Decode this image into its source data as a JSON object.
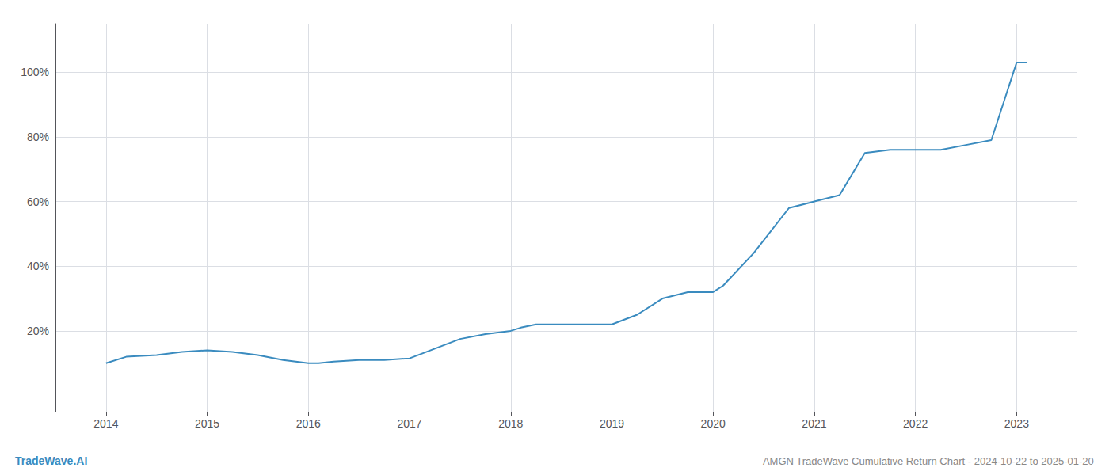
{
  "chart_data": {
    "type": "line",
    "title": "AMGN TradeWave Cumulative Return Chart - 2024-10-22 to 2025-01-20",
    "annotations": [
      "TradeWave.AI"
    ],
    "x": [
      2014.0,
      2014.2,
      2014.5,
      2014.75,
      2015.0,
      2015.25,
      2015.5,
      2015.75,
      2016.0,
      2016.1,
      2016.25,
      2016.5,
      2016.75,
      2017.0,
      2017.25,
      2017.5,
      2017.75,
      2018.0,
      2018.1,
      2018.25,
      2018.5,
      2018.75,
      2019.0,
      2019.25,
      2019.5,
      2019.75,
      2020.0,
      2020.1,
      2020.4,
      2020.75,
      2021.0,
      2021.25,
      2021.5,
      2021.75,
      2022.0,
      2022.25,
      2022.5,
      2022.75,
      2023.0,
      2023.1
    ],
    "values": [
      10,
      12,
      12.5,
      13.5,
      14,
      13.5,
      12.5,
      11,
      10,
      10,
      10.5,
      11,
      11,
      11.5,
      14.5,
      17.5,
      19,
      20,
      21,
      22,
      22,
      22,
      22,
      25,
      30,
      32,
      32,
      34,
      44,
      58,
      60,
      62,
      75,
      76,
      76,
      76,
      77.5,
      79,
      103,
      103
    ],
    "color": "#3a8bbf",
    "xlim": [
      2013.5,
      2023.6
    ],
    "ylim": [
      -5,
      115
    ],
    "xticks": [
      2014,
      2015,
      2016,
      2017,
      2018,
      2019,
      2020,
      2021,
      2022,
      2023
    ],
    "yticks": [
      {
        "value": 20,
        "label": "20%"
      },
      {
        "value": 40,
        "label": "40%"
      },
      {
        "value": 60,
        "label": "60%"
      },
      {
        "value": 80,
        "label": "80%"
      },
      {
        "value": 100,
        "label": "100%"
      }
    ],
    "grid": true
  }
}
